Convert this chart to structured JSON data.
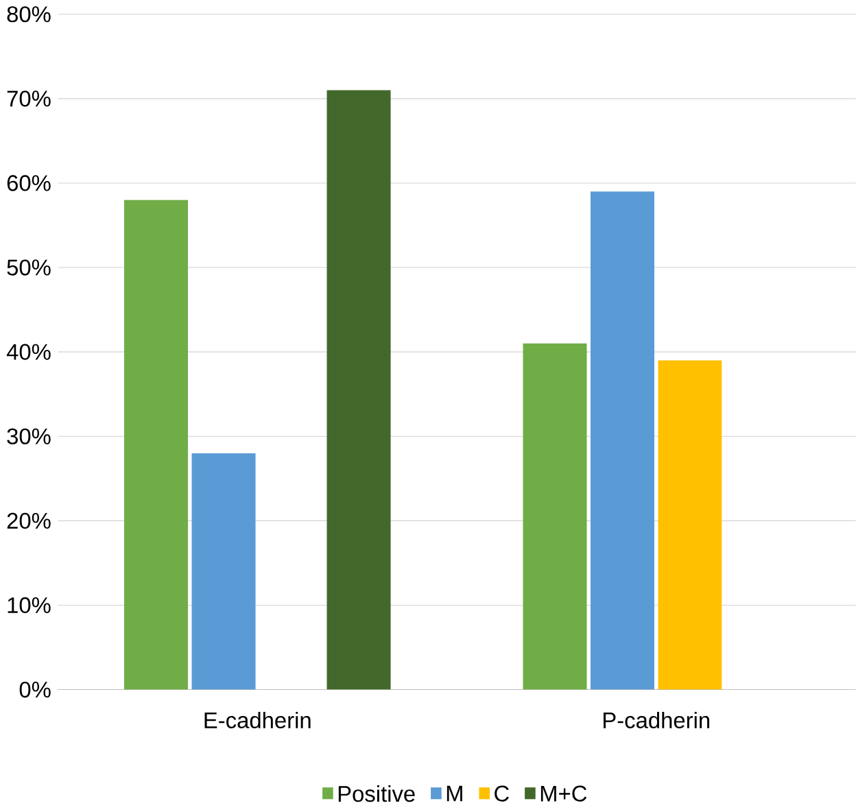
{
  "chart_data": {
    "type": "bar",
    "categories": [
      "E-cadherin",
      "P-cadherin"
    ],
    "series": [
      {
        "name": "Positive",
        "color": "#70ad47",
        "values": [
          58,
          41
        ]
      },
      {
        "name": "M",
        "color": "#5b9bd5",
        "values": [
          28,
          59
        ]
      },
      {
        "name": "C",
        "color": "#ffc000",
        "values": [
          0,
          39
        ]
      },
      {
        "name": "M+C",
        "color": "#43682b",
        "values": [
          71,
          0
        ]
      }
    ],
    "ylim": [
      0,
      80
    ],
    "yticks": [
      {
        "value": 0,
        "label": "0%"
      },
      {
        "value": 10,
        "label": "10%"
      },
      {
        "value": 20,
        "label": "20%"
      },
      {
        "value": 30,
        "label": "30%"
      },
      {
        "value": 40,
        "label": "40%"
      },
      {
        "value": 50,
        "label": "50%"
      },
      {
        "value": 60,
        "label": "60%"
      },
      {
        "value": 70,
        "label": "70%"
      },
      {
        "value": 80,
        "label": "80%"
      }
    ],
    "grid": "y",
    "legend": "bottom"
  }
}
